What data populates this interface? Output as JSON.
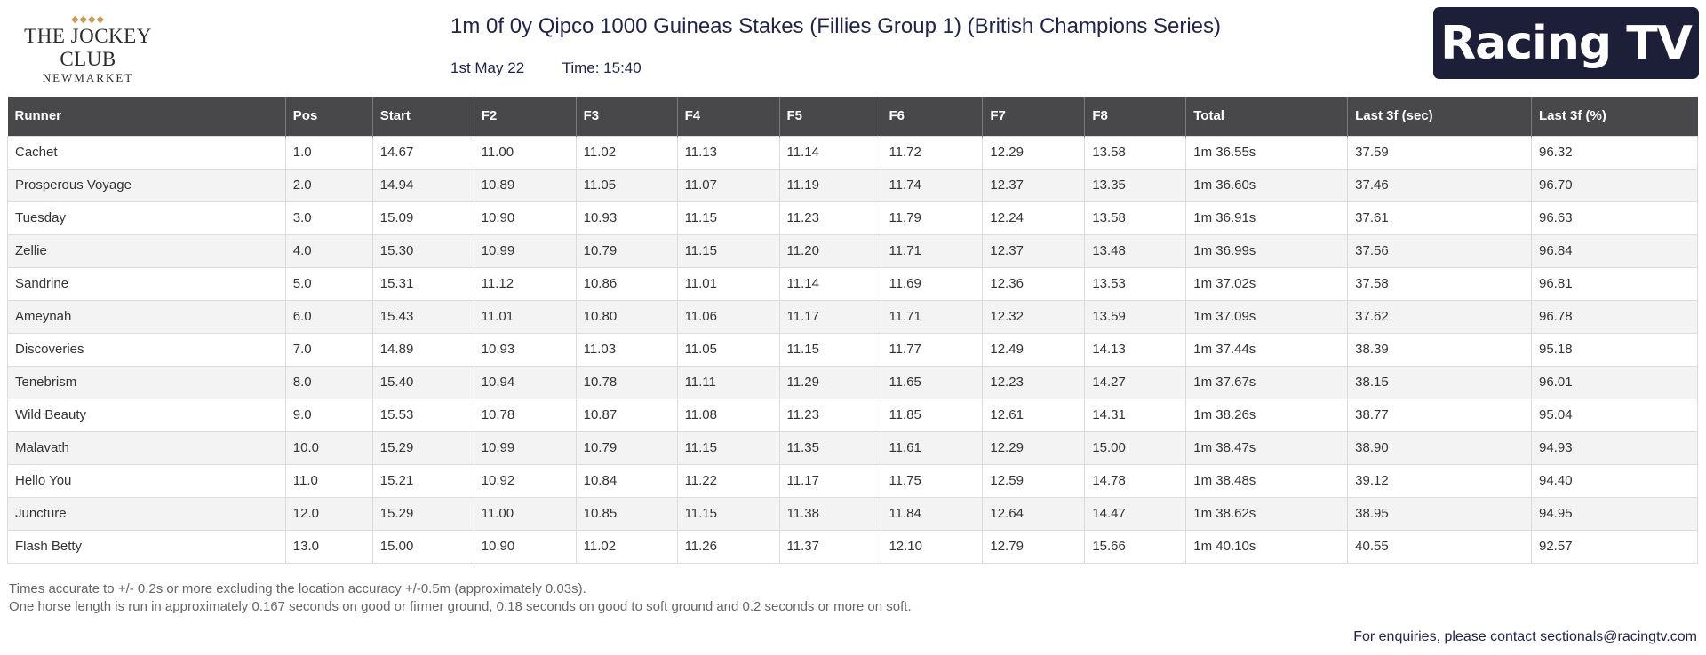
{
  "logo_left": {
    "diamonds": "◆◆◆◆",
    "main": "THE JOCKEY CLUB",
    "sub": "NEWMARKET"
  },
  "logo_right": {
    "text": "Racing TV"
  },
  "race": {
    "title": "1m 0f 0y Qipco 1000 Guineas Stakes (Fillies Group 1) (British Champions Series)",
    "date": "1st May 22",
    "time": "Time: 15:40"
  },
  "table": {
    "columns": [
      "Runner",
      "Pos",
      "Start",
      "F2",
      "F3",
      "F4",
      "F5",
      "F6",
      "F7",
      "F8",
      "Total",
      "Last 3f (sec)",
      "Last 3f (%)"
    ],
    "rows": [
      [
        "Cachet",
        "1.0",
        "14.67",
        "11.00",
        "11.02",
        "11.13",
        "11.14",
        "11.72",
        "12.29",
        "13.58",
        "1m 36.55s",
        "37.59",
        "96.32"
      ],
      [
        "Prosperous Voyage",
        "2.0",
        "14.94",
        "10.89",
        "11.05",
        "11.07",
        "11.19",
        "11.74",
        "12.37",
        "13.35",
        "1m 36.60s",
        "37.46",
        "96.70"
      ],
      [
        "Tuesday",
        "3.0",
        "15.09",
        "10.90",
        "10.93",
        "11.15",
        "11.23",
        "11.79",
        "12.24",
        "13.58",
        "1m 36.91s",
        "37.61",
        "96.63"
      ],
      [
        "Zellie",
        "4.0",
        "15.30",
        "10.99",
        "10.79",
        "11.15",
        "11.20",
        "11.71",
        "12.37",
        "13.48",
        "1m 36.99s",
        "37.56",
        "96.84"
      ],
      [
        "Sandrine",
        "5.0",
        "15.31",
        "11.12",
        "10.86",
        "11.01",
        "11.14",
        "11.69",
        "12.36",
        "13.53",
        "1m 37.02s",
        "37.58",
        "96.81"
      ],
      [
        "Ameynah",
        "6.0",
        "15.43",
        "11.01",
        "10.80",
        "11.06",
        "11.17",
        "11.71",
        "12.32",
        "13.59",
        "1m 37.09s",
        "37.62",
        "96.78"
      ],
      [
        "Discoveries",
        "7.0",
        "14.89",
        "10.93",
        "11.03",
        "11.05",
        "11.15",
        "11.77",
        "12.49",
        "14.13",
        "1m 37.44s",
        "38.39",
        "95.18"
      ],
      [
        "Tenebrism",
        "8.0",
        "15.40",
        "10.94",
        "10.78",
        "11.11",
        "11.29",
        "11.65",
        "12.23",
        "14.27",
        "1m 37.67s",
        "38.15",
        "96.01"
      ],
      [
        "Wild Beauty",
        "9.0",
        "15.53",
        "10.78",
        "10.87",
        "11.08",
        "11.23",
        "11.85",
        "12.61",
        "14.31",
        "1m 38.26s",
        "38.77",
        "95.04"
      ],
      [
        "Malavath",
        "10.0",
        "15.29",
        "10.99",
        "10.79",
        "11.15",
        "11.35",
        "11.61",
        "12.29",
        "15.00",
        "1m 38.47s",
        "38.90",
        "94.93"
      ],
      [
        "Hello You",
        "11.0",
        "15.21",
        "10.92",
        "10.84",
        "11.22",
        "11.17",
        "11.75",
        "12.59",
        "14.78",
        "1m 38.48s",
        "39.12",
        "94.40"
      ],
      [
        "Juncture",
        "12.0",
        "15.29",
        "11.00",
        "10.85",
        "11.15",
        "11.38",
        "11.84",
        "12.64",
        "14.47",
        "1m 38.62s",
        "38.95",
        "94.95"
      ],
      [
        "Flash Betty",
        "13.0",
        "15.00",
        "10.90",
        "11.02",
        "11.26",
        "11.37",
        "12.10",
        "12.79",
        "15.66",
        "1m 40.10s",
        "40.55",
        "92.57"
      ]
    ]
  },
  "notes": [
    "Times accurate to +/- 0.2s or more excluding the location accuracy +/-0.5m (approximately 0.03s).",
    "One horse length is run in approximately 0.167 seconds on good or firmer ground, 0.18 seconds on good to soft ground and 0.2 seconds or more on soft."
  ],
  "contact": "For enquiries, please contact sectionals@racingtv.com"
}
